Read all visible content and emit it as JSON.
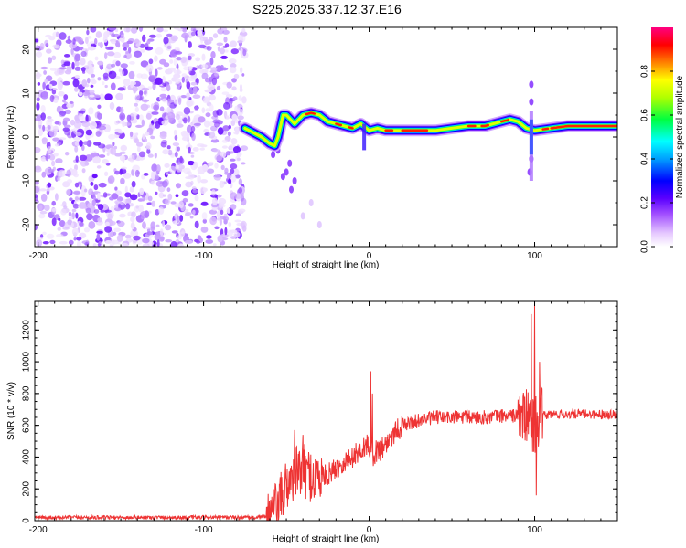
{
  "title": "S225.2025.337.12.37.E16",
  "chart_data": [
    {
      "type": "heatmap",
      "name": "spectrogram",
      "xlabel": "Height of straight line (km)",
      "ylabel": "Frequency (Hz)",
      "xlim": [
        -202,
        150
      ],
      "ylim": [
        -25,
        25
      ],
      "x_ticks": [
        -200,
        -100,
        0,
        100
      ],
      "y_ticks": [
        -20,
        -10,
        0,
        10,
        20
      ],
      "colorbar": {
        "label": "Normalized spectral amplitude",
        "range": [
          0.0,
          1.0
        ],
        "ticks": [
          "0.0",
          "0.2",
          "0.4",
          "0.6",
          "0.8"
        ]
      },
      "ridge": {
        "x": [
          -75,
          -70,
          -65,
          -60,
          -57,
          -55,
          -52,
          -50,
          -45,
          -40,
          -35,
          -30,
          -25,
          -20,
          -15,
          -10,
          -5,
          0,
          5,
          10,
          20,
          30,
          40,
          50,
          60,
          70,
          80,
          85,
          90,
          95,
          100,
          110,
          120,
          130,
          140,
          150
        ],
        "y": [
          2,
          1,
          0,
          -1.5,
          -2,
          0,
          5,
          5,
          3,
          5,
          5.5,
          5,
          3.5,
          3,
          2.5,
          2,
          3,
          1.5,
          2,
          1.5,
          1.5,
          1.5,
          1.5,
          2,
          2.5,
          2.5,
          3.5,
          4,
          3.5,
          2,
          1.5,
          2,
          2.5,
          2.5,
          2.5,
          2.5
        ]
      }
    },
    {
      "type": "line",
      "name": "snr",
      "xlabel": "Height of straight line (km)",
      "ylabel": "SNR (10 * v/v)",
      "xlim": [
        -202,
        150
      ],
      "ylim": [
        0,
        1380
      ],
      "x_ticks": [
        -200,
        -100,
        0,
        100
      ],
      "y_ticks": [
        0,
        200,
        400,
        600,
        800,
        1000,
        1200
      ],
      "color": "#ee3333",
      "envelope": {
        "x": [
          -202,
          -80,
          -65,
          -60,
          -55,
          -50,
          -45,
          -40,
          -35,
          -30,
          -25,
          -20,
          -15,
          -10,
          -5,
          0,
          2,
          5,
          10,
          15,
          20,
          30,
          40,
          50,
          60,
          70,
          80,
          90,
          95,
          98,
          100,
          102,
          105,
          110,
          120,
          130,
          140,
          150
        ],
        "y": [
          20,
          20,
          20,
          40,
          90,
          220,
          300,
          320,
          280,
          270,
          290,
          330,
          370,
          400,
          450,
          480,
          420,
          440,
          480,
          560,
          600,
          630,
          650,
          650,
          650,
          650,
          660,
          660,
          650,
          620,
          600,
          640,
          660,
          670,
          670,
          670,
          670,
          670
        ]
      },
      "spikes": [
        {
          "x": -45,
          "y": 570
        },
        {
          "x": -40,
          "y": 540
        },
        {
          "x": 1,
          "y": 940
        },
        {
          "x": 2,
          "y": 800
        },
        {
          "x": 98,
          "y": 1300
        },
        {
          "x": 100,
          "y": 1380
        },
        {
          "x": 101,
          "y": 160
        },
        {
          "x": 103,
          "y": 1000
        }
      ]
    }
  ]
}
